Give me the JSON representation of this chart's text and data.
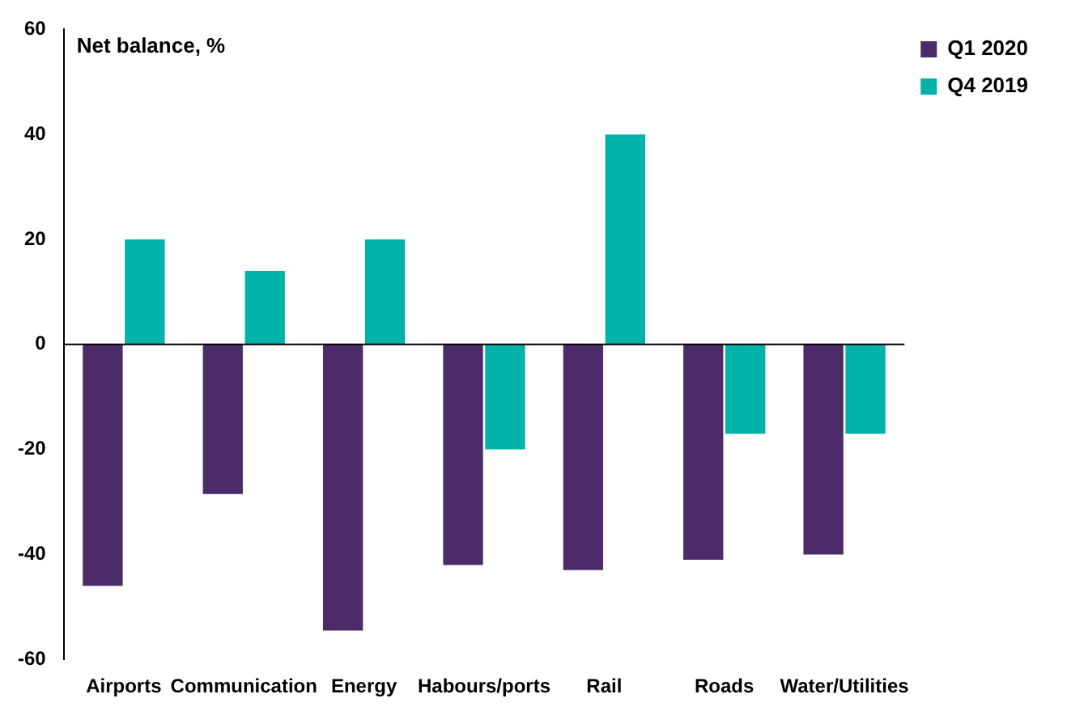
{
  "chart_data": {
    "type": "bar",
    "ylabel": "Net balance, %",
    "categories": [
      "Airports",
      "Communication",
      "Energy",
      "Habours/ports",
      "Rail",
      "Roads",
      "Water/Utilities"
    ],
    "series": [
      {
        "name": "Q1 2020",
        "color": "#4b2c69",
        "values": [
          -46,
          -28.5,
          -54.5,
          -42,
          -43,
          -41,
          -40
        ]
      },
      {
        "name": "Q4 2019",
        "color": "#00b2a9",
        "values": [
          20,
          14,
          20,
          -20,
          40,
          -17,
          -17
        ]
      }
    ],
    "ylim": [
      -60,
      60
    ],
    "yticks": [
      -60,
      -40,
      -20,
      0,
      20,
      40,
      60
    ],
    "ref_lines": [
      {
        "axis": "y",
        "value": 0,
        "color": "#000000"
      }
    ],
    "grid": false,
    "legend": "top right"
  }
}
